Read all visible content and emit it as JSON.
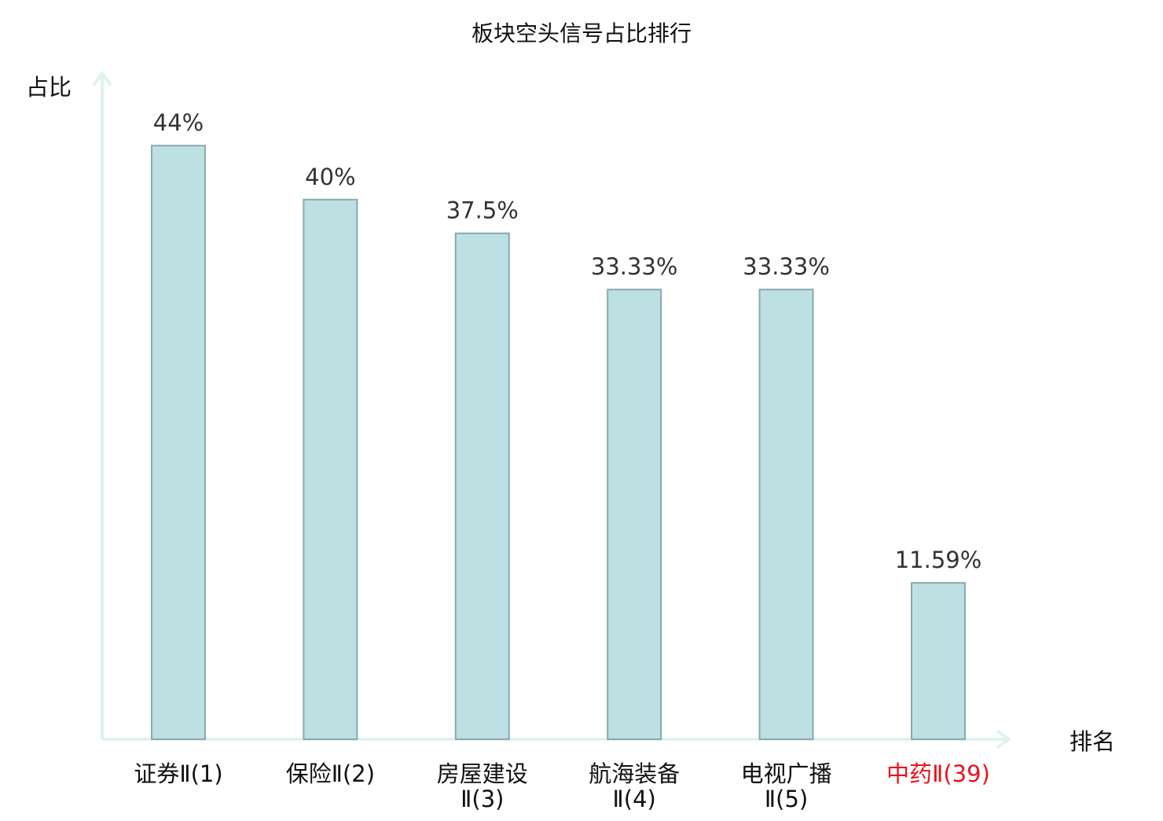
{
  "chart_data": {
    "type": "bar",
    "title": "板块空头信号占比排行",
    "ylabel": "占比",
    "xlabel": "排名",
    "ylim": [
      0,
      48.5
    ],
    "grid": false,
    "legend": "none",
    "categories": [
      {
        "lines": [
          "证券Ⅱ(1)"
        ],
        "highlight": false
      },
      {
        "lines": [
          "保险Ⅱ(2)"
        ],
        "highlight": false
      },
      {
        "lines": [
          "房屋建设",
          "Ⅱ(3)"
        ],
        "highlight": false
      },
      {
        "lines": [
          "航海装备",
          "Ⅱ(4)"
        ],
        "highlight": false
      },
      {
        "lines": [
          "电视广播",
          "Ⅱ(5)"
        ],
        "highlight": false
      },
      {
        "lines": [
          "中药Ⅱ(39)"
        ],
        "highlight": true
      }
    ],
    "values": [
      44,
      40,
      37.5,
      33.33,
      33.33,
      11.59
    ],
    "value_labels": [
      "44%",
      "40%",
      "37.5%",
      "33.33%",
      "33.33%",
      "11.59%"
    ],
    "colors": {
      "bar_fill": "#bde0e3",
      "bar_stroke": "#8aa9ab",
      "axis": "#dff2f0",
      "text": "#111111",
      "value_text": "#333333",
      "highlight": "#e8141b"
    }
  }
}
